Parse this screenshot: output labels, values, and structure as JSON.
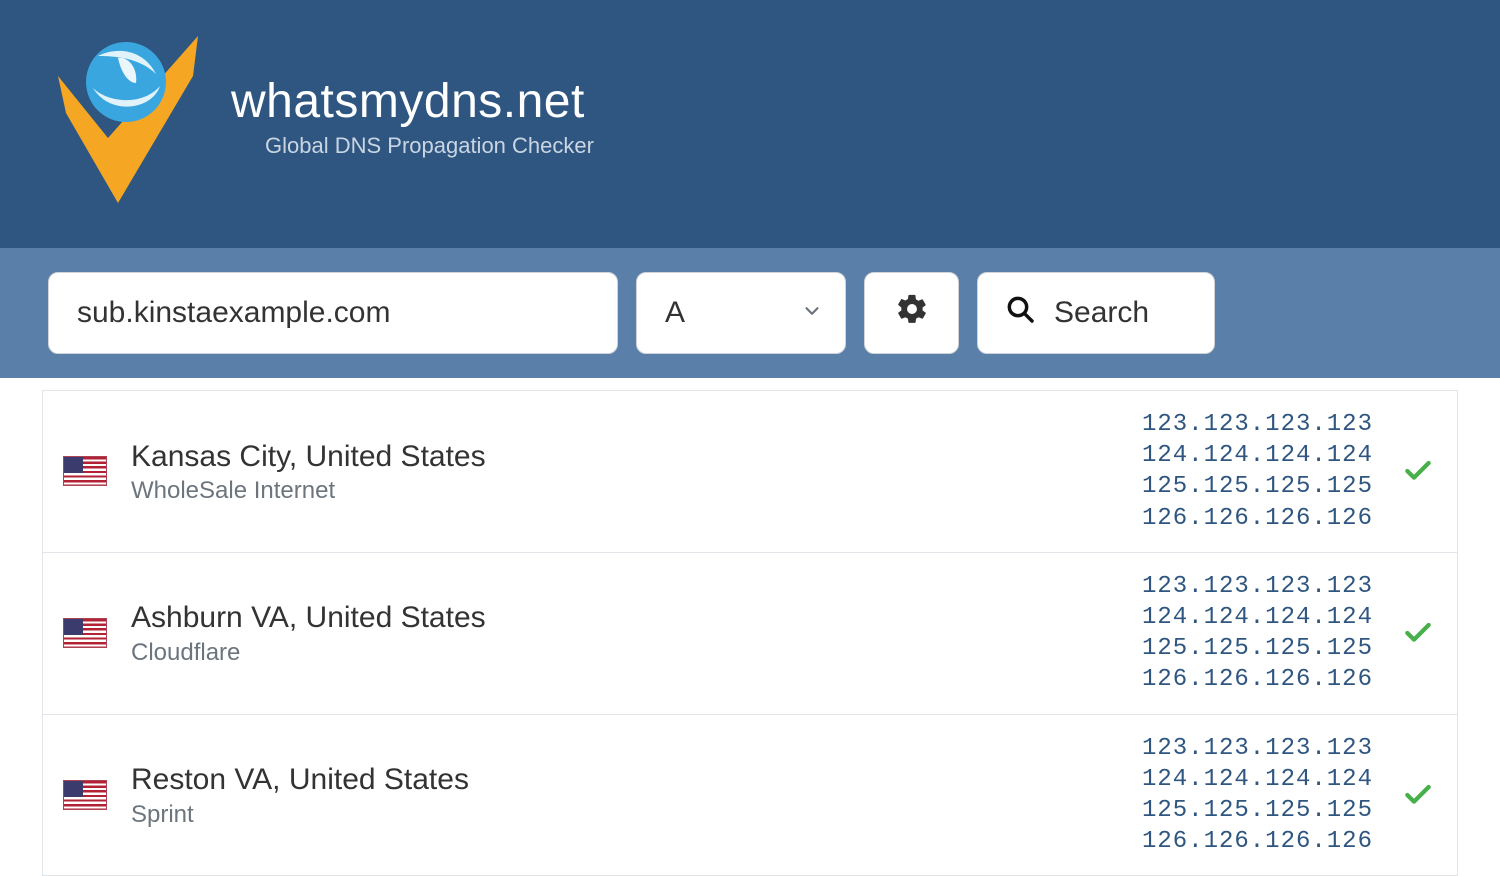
{
  "colors": {
    "header_bg": "#2f5680",
    "search_bg": "#5a80a9",
    "ip_text": "#2f5680",
    "check_green": "#47b04b",
    "muted": "#6c757d"
  },
  "site": {
    "title": "whatsmydns.net",
    "tagline": "Global DNS Propagation Checker"
  },
  "search": {
    "domain": "sub.kinstaexample.com",
    "record_type": "A",
    "button_label": "Search"
  },
  "results": [
    {
      "country": "us",
      "location": "Kansas City, United States",
      "provider": "WholeSale Internet",
      "ips": [
        "123.123.123.123",
        "124.124.124.124",
        "125.125.125.125",
        "126.126.126.126"
      ],
      "ok": true
    },
    {
      "country": "us",
      "location": "Ashburn VA, United States",
      "provider": "Cloudflare",
      "ips": [
        "123.123.123.123",
        "124.124.124.124",
        "125.125.125.125",
        "126.126.126.126"
      ],
      "ok": true
    },
    {
      "country": "us",
      "location": "Reston VA, United States",
      "provider": "Sprint",
      "ips": [
        "123.123.123.123",
        "124.124.124.124",
        "125.125.125.125",
        "126.126.126.126"
      ],
      "ok": true
    }
  ]
}
